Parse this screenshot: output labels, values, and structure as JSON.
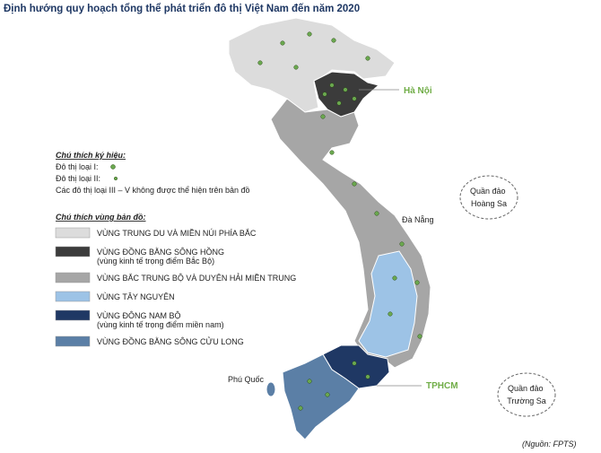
{
  "title": "Định hướng quy hoạch tổng thể phát triển đô thị Việt Nam đến năm 2020",
  "symbol_legend": {
    "title": "Chú thích ký hiệu:",
    "items": [
      "Đô thị loại I:",
      "Đô thị loại II:",
      "Các đô thị loại III – V không được thể hiện trên bản đồ"
    ]
  },
  "region_legend": {
    "title": "Chú thích vùng bản đồ:",
    "items": [
      {
        "label": "VÙNG TRUNG DU VÀ MIỀN NÚI PHÍA BẮC",
        "color": "#dcdcdc"
      },
      {
        "label": "VÙNG ĐỒNG BẰNG SÔNG HỒNG",
        "note": "(vùng kinh tế trọng điểm Bắc Bộ)",
        "color": "#3b3b3b"
      },
      {
        "label": "VÙNG BẮC TRUNG BỘ VÀ DUYÊN HẢI MIỀN TRUNG",
        "color": "#a6a6a6"
      },
      {
        "label": "VÙNG TÂY NGUYÊN",
        "color": "#9dc3e6"
      },
      {
        "label": "VÙNG ĐÔNG NAM BỘ",
        "note": "(vùng kinh tế trọng điểm miền nam)",
        "color": "#1f3864"
      },
      {
        "label": "VÙNG ĐỒNG BẰNG SÔNG CỬU LONG",
        "color": "#5b7fa6"
      }
    ]
  },
  "map_labels": {
    "ha_noi": "Hà Nội",
    "da_nang": "Đà Nẵng",
    "tphcm": "TPHCM",
    "phu_quoc": "Phú Quốc",
    "hoang_sa": [
      "Quần đảo",
      "Hoàng Sa"
    ],
    "truong_sa": [
      "Quần đảo",
      "Trường Sa"
    ]
  },
  "source": "(Nguồn: FPTS)"
}
